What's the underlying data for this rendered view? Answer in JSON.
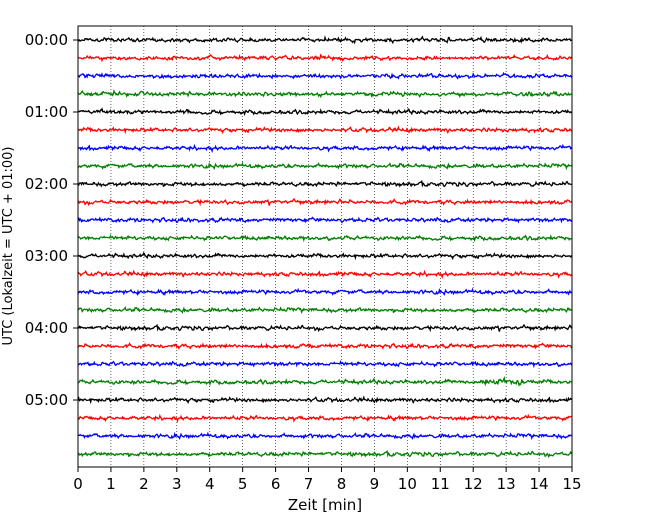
{
  "chart_data": {
    "type": "line",
    "title": "",
    "xlabel": "Zeit  [min]",
    "ylabel": "UTC (Lokalzeit = UTC + 01:00)",
    "xlim": [
      0,
      15
    ],
    "x_ticks": [
      0,
      1,
      2,
      3,
      4,
      5,
      6,
      7,
      8,
      9,
      10,
      11,
      12,
      13,
      14,
      15
    ],
    "x_tick_labels": [
      "0",
      "1",
      "2",
      "3",
      "4",
      "5",
      "6",
      "7",
      "8",
      "9",
      "10",
      "11",
      "12",
      "13",
      "14",
      "15"
    ],
    "y_ticks": [
      {
        "label": "00:00",
        "trace_index": 0
      },
      {
        "label": "01:00",
        "trace_index": 4
      },
      {
        "label": "02:00",
        "trace_index": 8
      },
      {
        "label": "03:00",
        "trace_index": 12
      },
      {
        "label": "04:00",
        "trace_index": 16
      },
      {
        "label": "05:00",
        "trace_index": 20
      }
    ],
    "trace_interval_min": 15,
    "trace_count": 24,
    "trace_colors": [
      "#000000",
      "#ff0000",
      "#0000ff",
      "#008000"
    ],
    "vertical_grid": true,
    "grid_style": "dotted"
  }
}
